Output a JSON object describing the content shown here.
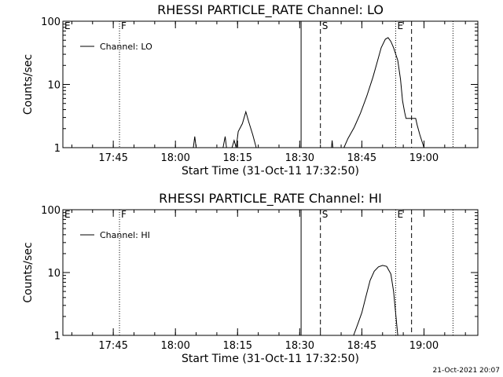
{
  "chart_data": [
    {
      "type": "line",
      "title": "RHESSI PARTICLE_RATE Channel: LO",
      "xlabel": "Start Time (31-Oct-11 17:32:50)",
      "ylabel": "Counts/sec",
      "y_scale": "log",
      "ylim": [
        1,
        100
      ],
      "y_ticks": [
        {
          "value": 1,
          "label": "1"
        },
        {
          "value": 10,
          "label": "10"
        },
        {
          "value": 100,
          "label": "100"
        }
      ],
      "xlim": [
        "17:32:50",
        "19:13:00"
      ],
      "x_ticks": [
        "17:45",
        "18:00",
        "18:15",
        "18:30",
        "18:45",
        "19:00"
      ],
      "legend": {
        "entries": [
          "Channel: LO"
        ],
        "placement": "top-left"
      },
      "grid": false,
      "markers": [
        {
          "time": "17:32:50",
          "label": "E",
          "style": "none"
        },
        {
          "time": "17:46:30",
          "label": "F",
          "style": "dotted"
        },
        {
          "time": "18:30:20",
          "label": "",
          "style": "solid"
        },
        {
          "time": "18:35:00",
          "label": "S",
          "style": "dashed"
        },
        {
          "time": "18:53:10",
          "label": "E",
          "style": "dotted"
        },
        {
          "time": "18:57:00",
          "label": "",
          "style": "dashed"
        },
        {
          "time": "19:07:00",
          "label": "",
          "style": "dotted"
        }
      ],
      "series": [
        {
          "name": "Channel: LO",
          "segments": [
            [
              [
                "18:04:20",
                1.0
              ],
              [
                "18:04:40",
                1.5
              ],
              [
                "18:05:00",
                1.0
              ]
            ],
            [
              [
                "18:11:30",
                1.0
              ],
              [
                "18:12:00",
                1.5
              ],
              [
                "18:12:20",
                1.0
              ]
            ],
            [
              [
                "18:13:40",
                1.0
              ],
              [
                "18:14:10",
                1.3
              ],
              [
                "18:14:40",
                1.0
              ],
              [
                "18:15:10",
                1.8
              ],
              [
                "18:16:10",
                2.4
              ],
              [
                "18:17:00",
                3.7
              ],
              [
                "18:17:40",
                2.6
              ],
              [
                "18:18:40",
                1.6
              ],
              [
                "18:19:30",
                1.0
              ]
            ],
            [
              [
                "18:37:40",
                1.0
              ],
              [
                "18:37:50",
                1.3
              ],
              [
                "18:38:00",
                1.0
              ]
            ],
            [
              [
                "18:40:40",
                1.0
              ],
              [
                "18:41:40",
                1.4
              ],
              [
                "18:43:10",
                2.1
              ],
              [
                "18:44:40",
                3.5
              ],
              [
                "18:46:10",
                6.5
              ],
              [
                "18:47:40",
                13
              ],
              [
                "18:48:40",
                22
              ],
              [
                "18:49:40",
                38
              ],
              [
                "18:50:40",
                52
              ],
              [
                "18:51:20",
                55
              ],
              [
                "18:52:00",
                48
              ],
              [
                "18:52:40",
                38
              ],
              [
                "18:53:40",
                24
              ],
              [
                "18:54:20",
                12
              ],
              [
                "18:54:50",
                5.5
              ],
              [
                "18:55:20",
                3.6
              ],
              [
                "18:55:40",
                2.9
              ],
              [
                "18:58:00",
                2.9
              ],
              [
                "18:58:20",
                2.3
              ],
              [
                "18:59:00",
                1.6
              ],
              [
                "19:00:00",
                1.0
              ]
            ]
          ]
        }
      ]
    },
    {
      "type": "line",
      "title": "RHESSI PARTICLE_RATE Channel: HI",
      "xlabel": "Start Time (31-Oct-11 17:32:50)",
      "ylabel": "Counts/sec",
      "y_scale": "log",
      "ylim": [
        1,
        100
      ],
      "y_ticks": [
        {
          "value": 1,
          "label": "1"
        },
        {
          "value": 10,
          "label": "10"
        },
        {
          "value": 100,
          "label": "100"
        }
      ],
      "xlim": [
        "17:32:50",
        "19:13:00"
      ],
      "x_ticks": [
        "17:45",
        "18:00",
        "18:15",
        "18:30",
        "18:45",
        "19:00"
      ],
      "legend": {
        "entries": [
          "Channel: HI"
        ],
        "placement": "top-left"
      },
      "grid": false,
      "markers": [
        {
          "time": "17:32:50",
          "label": "E",
          "style": "none"
        },
        {
          "time": "17:46:30",
          "label": "F",
          "style": "dotted"
        },
        {
          "time": "18:30:20",
          "label": "",
          "style": "solid"
        },
        {
          "time": "18:35:00",
          "label": "S",
          "style": "dashed"
        },
        {
          "time": "18:53:10",
          "label": "E",
          "style": "dotted"
        },
        {
          "time": "18:57:00",
          "label": "",
          "style": "dashed"
        },
        {
          "time": "19:07:00",
          "label": "",
          "style": "dotted"
        }
      ],
      "series": [
        {
          "name": "Channel: HI",
          "segments": [
            [
              [
                "18:43:00",
                1.0
              ],
              [
                "18:44:00",
                1.5
              ],
              [
                "18:45:00",
                2.3
              ],
              [
                "18:46:00",
                4.2
              ],
              [
                "18:47:00",
                7.5
              ],
              [
                "18:48:00",
                10.5
              ],
              [
                "18:49:00",
                12.3
              ],
              [
                "18:50:00",
                13.0
              ],
              [
                "18:51:00",
                12.5
              ],
              [
                "18:52:00",
                9.5
              ],
              [
                "18:52:40",
                5.0
              ],
              [
                "18:53:10",
                2.2
              ],
              [
                "18:53:40",
                1.0
              ]
            ]
          ]
        }
      ]
    }
  ],
  "footer": {
    "timestamp": "21-Oct-2021 20:07"
  }
}
